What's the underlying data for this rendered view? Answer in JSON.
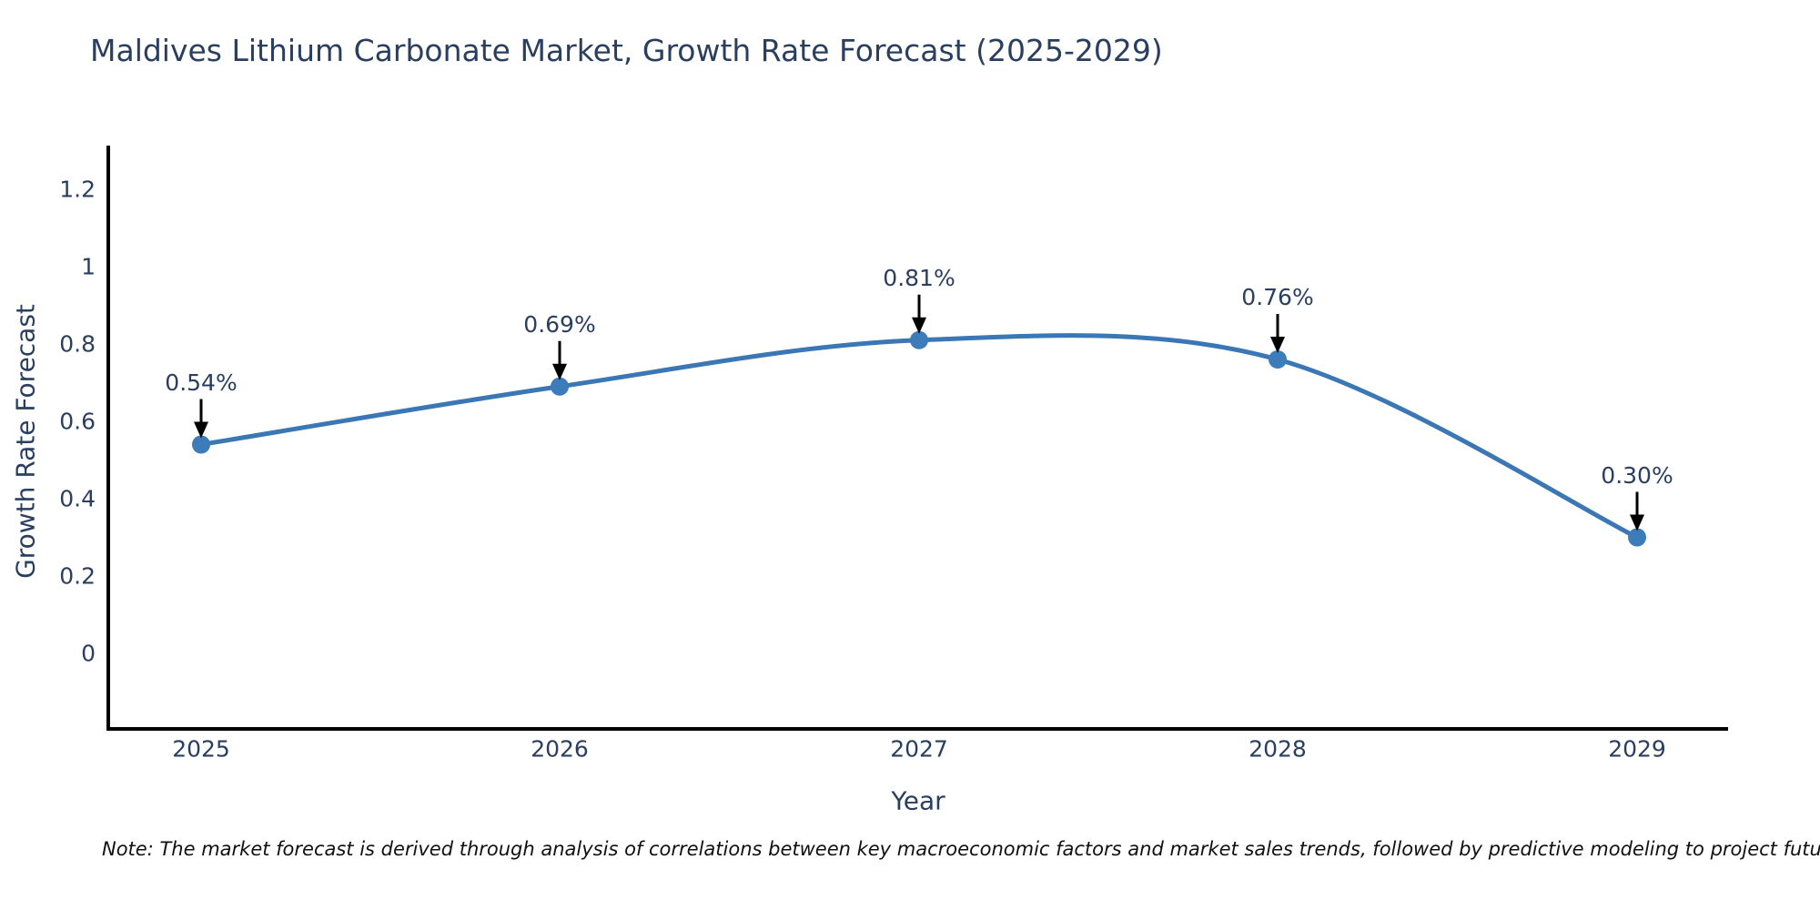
{
  "chart": {
    "note": "Note: The market forecast is derived through analysis of correlations between key macroeconomic factors and market sales trends, followed by predictive modeling to project future sales"
  },
  "chart_data": {
    "type": "line",
    "title": "Maldives Lithium Carbonate Market, Growth Rate Forecast (2025-2029)",
    "xlabel": "Year",
    "ylabel": "Growth Rate Forecast",
    "categories": [
      "2025",
      "2026",
      "2027",
      "2028",
      "2029"
    ],
    "series": [
      {
        "name": "Growth Rate Forecast",
        "values": [
          0.54,
          0.69,
          0.81,
          0.76,
          0.3
        ],
        "point_labels": [
          "0.54%",
          "0.69%",
          "0.81%",
          "0.76%",
          "0.30%"
        ]
      }
    ],
    "line_shape": "spline",
    "markers": true,
    "annotations_arrows": true,
    "yticks": {
      "values": [
        0,
        0.2,
        0.4,
        0.6,
        0.8,
        1,
        1.2
      ],
      "labels": [
        "0",
        "0.2",
        "0.4",
        "0.6",
        "0.8",
        "1",
        "1.2"
      ]
    },
    "ylim": [
      -0.2,
      1.31
    ],
    "grid": false,
    "legend_position": "none",
    "colors": {
      "line": "#3b77b4",
      "marker": "#3c7cba",
      "arrow": "#000000",
      "axis": "#000000",
      "text": "#2a3f5f"
    }
  }
}
